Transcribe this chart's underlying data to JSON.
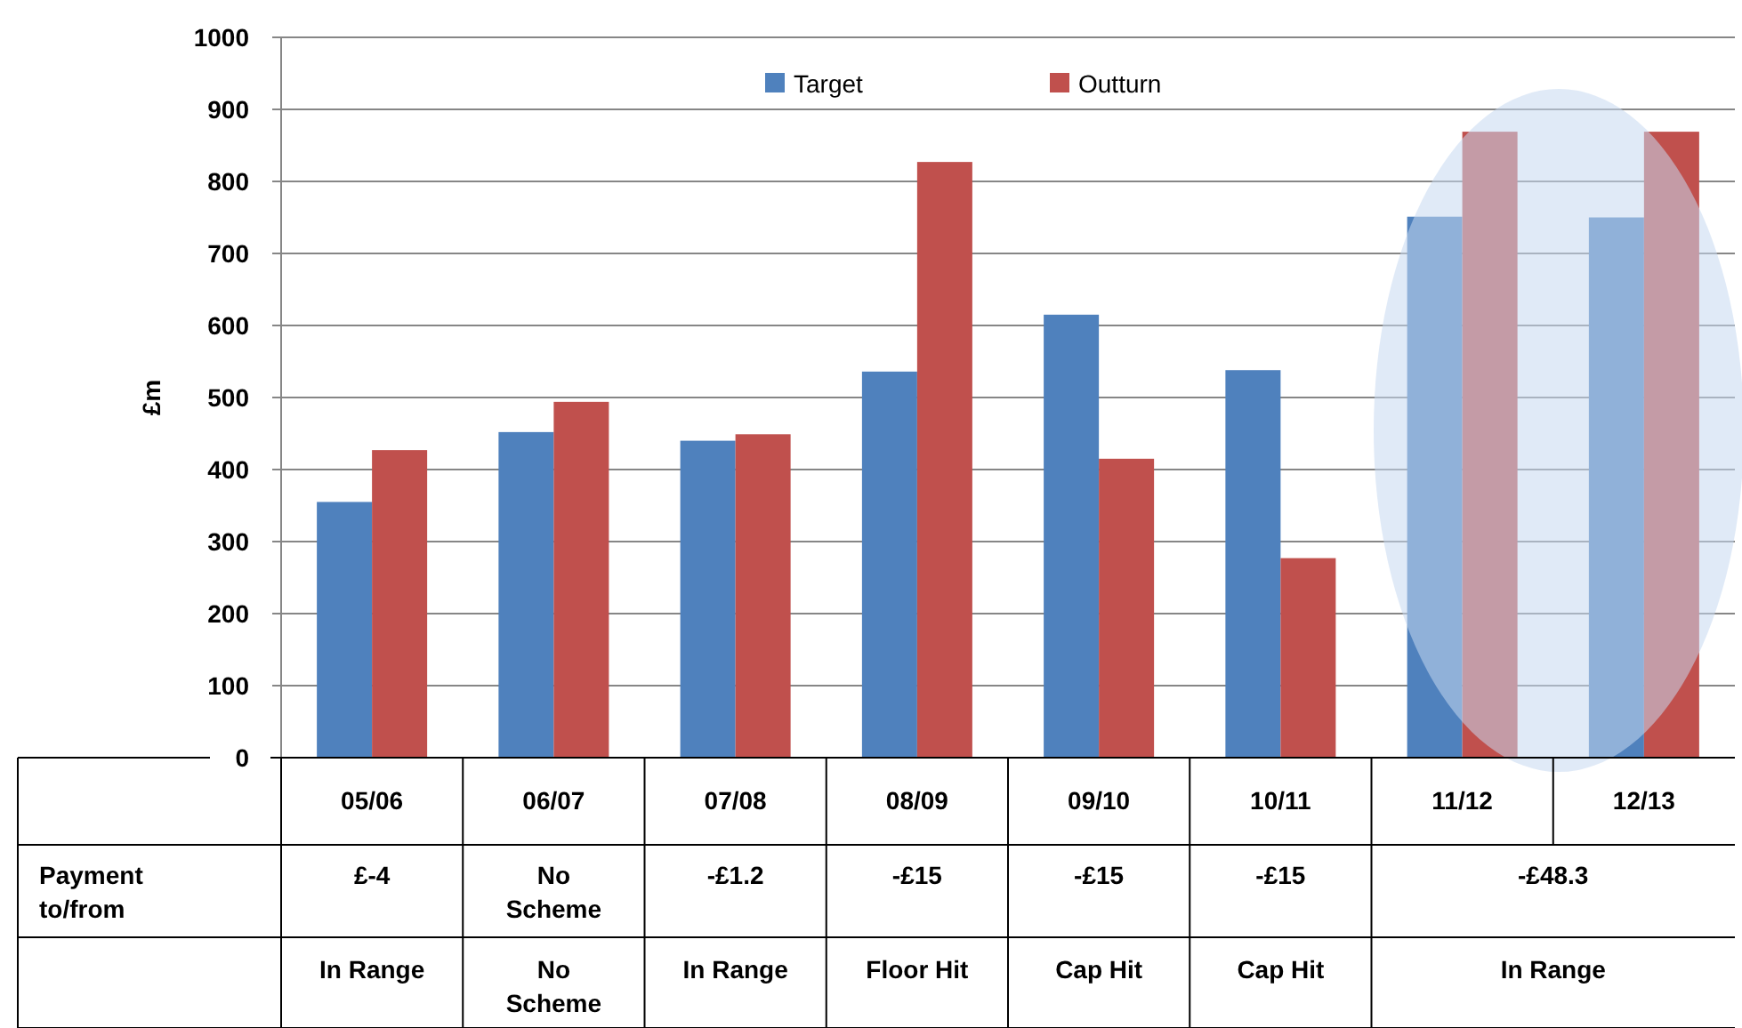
{
  "chart_data": {
    "type": "bar",
    "ylabel": "£m",
    "categories": [
      "05/06",
      "06/07",
      "07/08",
      "08/09",
      "09/10",
      "10/11",
      "11/12",
      "12/13"
    ],
    "series": [
      {
        "name": "Target",
        "color": "#4f81bd",
        "values": [
          355,
          452,
          440,
          536,
          615,
          538,
          751,
          750
        ]
      },
      {
        "name": "Outturn",
        "color": "#c0504d",
        "values": [
          427,
          494,
          449,
          827,
          415,
          277,
          869,
          869
        ]
      }
    ],
    "ylim": [
      0,
      1000
    ],
    "yticks": [
      0,
      100,
      200,
      300,
      400,
      500,
      600,
      700,
      800,
      900,
      1000
    ],
    "grid": "y",
    "legend": "top",
    "annotations": [
      "Payment\nto/from",
      "£-4",
      "No\nScheme",
      "-£1.2",
      "-£15",
      "-£15",
      "-£15",
      "-£48.3",
      "In Range",
      "No\nScheme",
      "In Range",
      "Floor Hit",
      "Cap Hit",
      "Cap Hit",
      "In Range"
    ]
  }
}
